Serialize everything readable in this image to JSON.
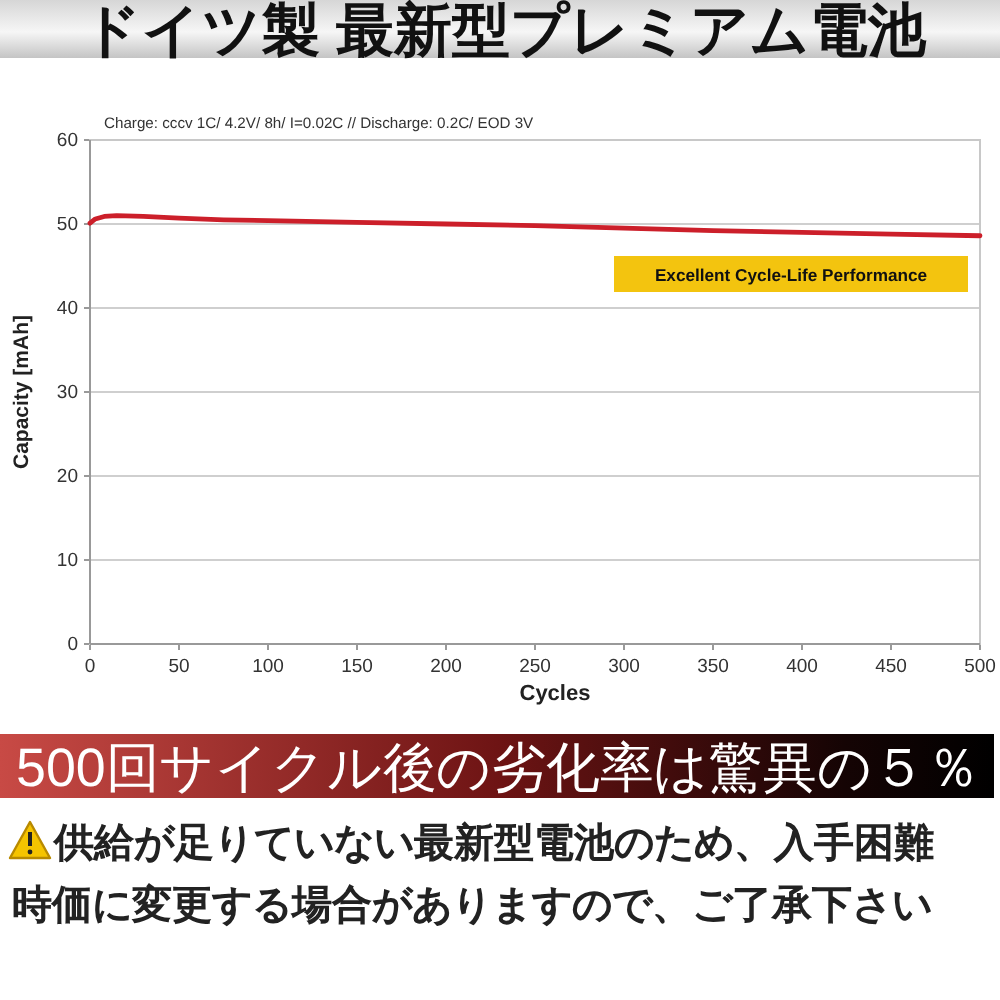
{
  "chart_data": {
    "type": "line",
    "title": "ドイツ製 最新型プレミアム電池",
    "subtitle": "Charge: cccv 1C/ 4.2V/ 8h/ I=0.02C // Discharge: 0.2C/ EOD 3V",
    "xlabel": "Cycles",
    "ylabel": "Capacity [mAh]",
    "x": [
      0,
      3,
      8,
      15,
      30,
      50,
      75,
      100,
      150,
      200,
      250,
      300,
      350,
      400,
      450,
      500
    ],
    "series": [
      {
        "color": "#cc1f2a",
        "values": [
          50.1,
          50.6,
          50.9,
          51.0,
          50.9,
          50.7,
          50.5,
          50.4,
          50.2,
          50.0,
          49.8,
          49.5,
          49.2,
          49.0,
          48.8,
          48.6
        ]
      }
    ],
    "xlim": [
      0,
      500
    ],
    "xticks": [
      0,
      50,
      100,
      150,
      200,
      250,
      300,
      350,
      400,
      450,
      500
    ],
    "ylim": [
      0,
      60
    ],
    "yticks": [
      0,
      10,
      20,
      30,
      40,
      50,
      60
    ],
    "grid": "y",
    "annotations": [
      "Excellent Cycle-Life Performance",
      "500回サイクル後の劣化率は驚異の５％",
      "供給が足りていない最新型電池のため、入手困難",
      "時価に変更する場合がありますので、ご了承下さい"
    ]
  }
}
